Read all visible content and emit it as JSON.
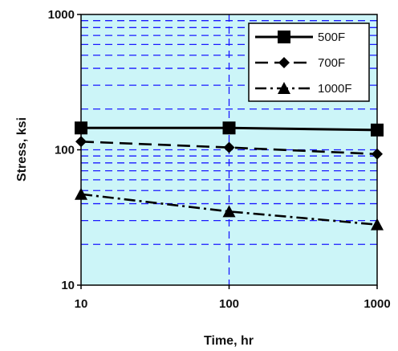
{
  "chart_data": {
    "type": "line",
    "title": "",
    "xlabel": "Time, hr",
    "ylabel": "Stress, ksi",
    "xscale": "log",
    "yscale": "log",
    "xlim": [
      10,
      1000
    ],
    "ylim": [
      10,
      1000
    ],
    "x_ticks": [
      "10",
      "100",
      "1000"
    ],
    "y_ticks": [
      "10",
      "100",
      "1000"
    ],
    "grid": "dashed blue, major and minor",
    "plot_background": "#ccf5f8",
    "grid_color": "#1a1aff",
    "legend_position": "top-right",
    "series": [
      {
        "name": "500F",
        "marker": "square",
        "line": "solid",
        "x": [
          10,
          100,
          1000
        ],
        "y": [
          145,
          145,
          140
        ]
      },
      {
        "name": "700F",
        "marker": "diamond",
        "line": "long-dash",
        "x": [
          10,
          100,
          1000
        ],
        "y": [
          115,
          104,
          93
        ]
      },
      {
        "name": "1000F",
        "marker": "triangle",
        "line": "dash-dot",
        "x": [
          10,
          100,
          1000
        ],
        "y": [
          47,
          35,
          28
        ]
      }
    ]
  }
}
